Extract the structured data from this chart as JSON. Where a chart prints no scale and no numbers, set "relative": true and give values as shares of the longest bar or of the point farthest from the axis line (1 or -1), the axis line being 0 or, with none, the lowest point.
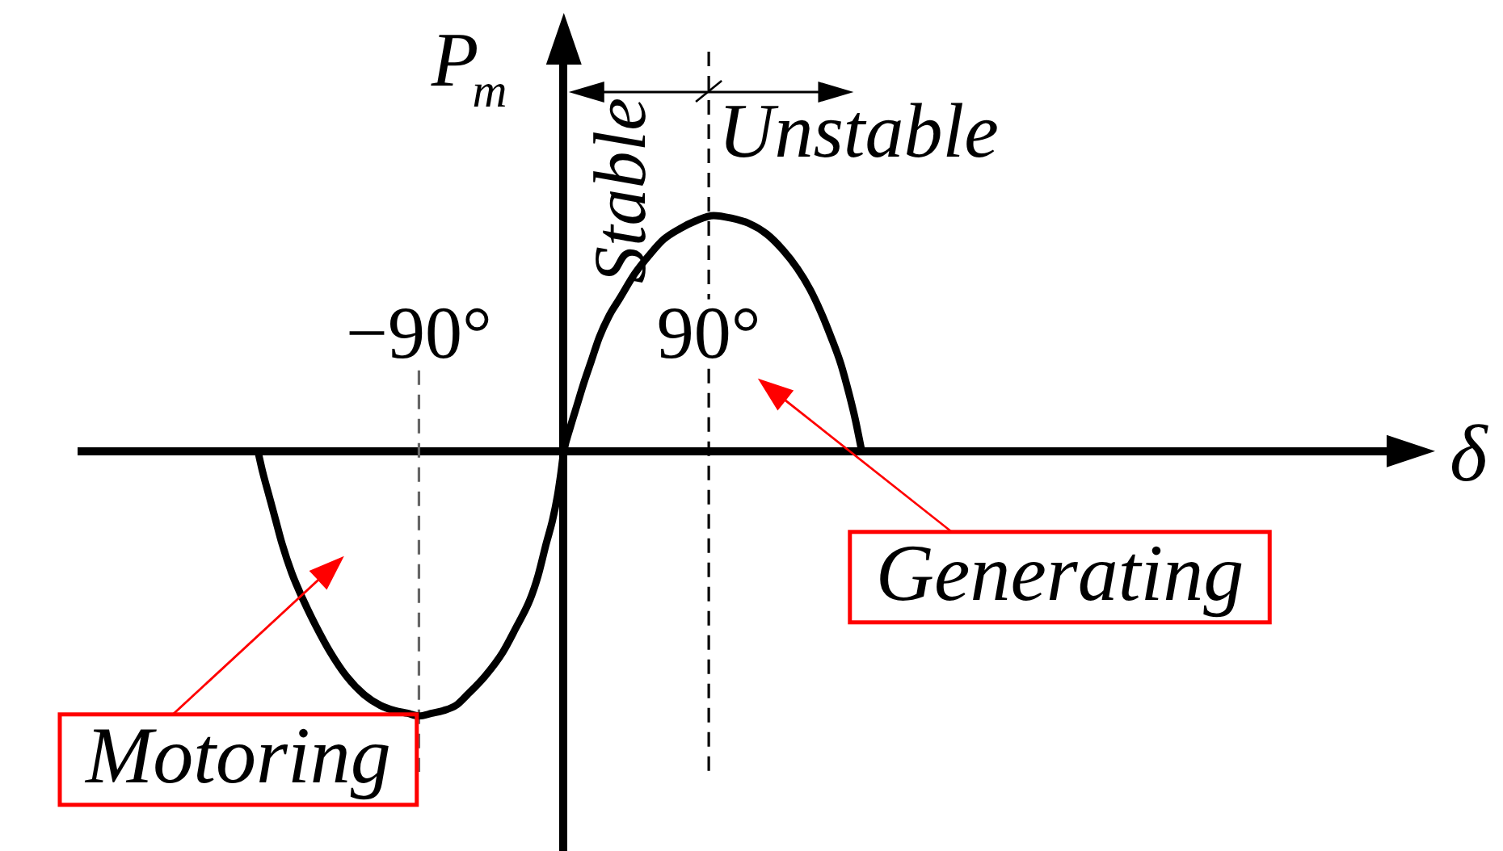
{
  "chart_data": {
    "type": "line",
    "xlabel": "δ",
    "ylabel": "P$_{m}$",
    "x": [
      -190,
      -187,
      -183,
      -179,
      -175,
      -169,
      -162,
      -154,
      -145,
      -135,
      -124,
      -114,
      -105,
      -97,
      -90,
      -82,
      -75,
      -67,
      -60,
      -49,
      -38,
      -30,
      -21,
      -16,
      -11,
      -7,
      -4,
      -2,
      0,
      4,
      8,
      12,
      17,
      22,
      28,
      35,
      44,
      53,
      62,
      72,
      82,
      93,
      104,
      115,
      126,
      136,
      145,
      153,
      160,
      166,
      172,
      177,
      181,
      185
    ],
    "values": [
      0,
      -0.08,
      -0.17,
      -0.26,
      -0.35,
      -0.46,
      -0.56,
      -0.66,
      -0.76,
      -0.85,
      -0.92,
      -0.96,
      -0.98,
      -0.99,
      -1,
      -0.99,
      -0.98,
      -0.96,
      -0.92,
      -0.85,
      -0.76,
      -0.67,
      -0.56,
      -0.47,
      -0.35,
      -0.26,
      -0.17,
      -0.09,
      0,
      0.09,
      0.17,
      0.25,
      0.34,
      0.43,
      0.51,
      0.58,
      0.67,
      0.74,
      0.8,
      0.84,
      0.87,
      0.89,
      0.88,
      0.86,
      0.82,
      0.76,
      0.69,
      0.61,
      0.52,
      0.43,
      0.33,
      0.22,
      0.12,
      0
    ],
    "color": "#000000",
    "relative": true,
    "xlim": [
      -300,
      511
    ],
    "xticks": [
      {
        "value": -90,
        "label": "−90°"
      },
      {
        "value": 90,
        "label": "90°"
      }
    ],
    "ref_lines": [
      {
        "axis": "x",
        "value": -90,
        "color": "#666666",
        "line_style": "dashed"
      },
      {
        "axis": "x",
        "value": 90,
        "color": "#000000",
        "line_style": "dashed"
      }
    ],
    "annotations": [
      "Stable",
      "Unstable",
      "Generating",
      "Motoring"
    ]
  }
}
